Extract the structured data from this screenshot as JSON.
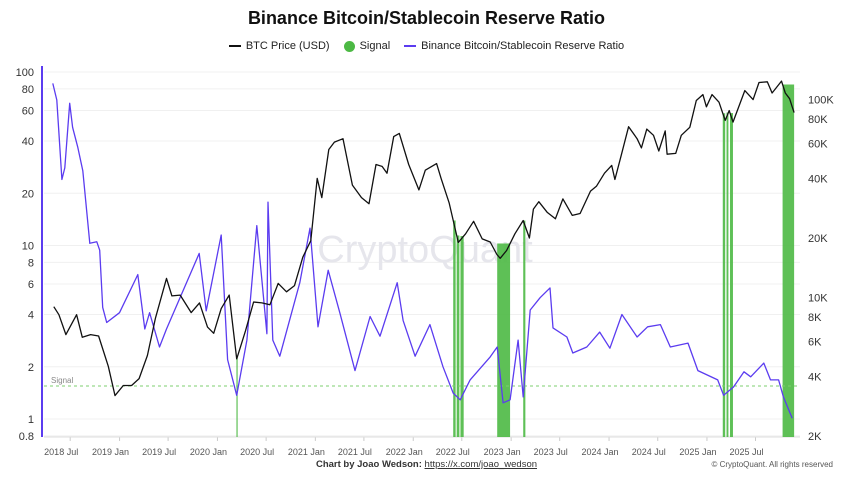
{
  "chart_data": {
    "type": "line",
    "title": "Binance Bitcoin/Stablecoin Reserve Ratio",
    "legend_position": "top",
    "grid": true,
    "x_tick_labels": [
      "2018 Jul",
      "2019 Jan",
      "2019 Jul",
      "2020 Jan",
      "2020 Jul",
      "2021 Jan",
      "2021 Jul",
      "2022 Jan",
      "2022 Jul",
      "2023 Jan",
      "2023 Jul",
      "2024 Jan",
      "2024 Jul",
      "2025 Jan",
      "2025 Jul"
    ],
    "x_ticks": [
      "2018-07-01",
      "2019-01-01",
      "2019-07-01",
      "2020-01-01",
      "2020-07-01",
      "2021-01-01",
      "2021-07-01",
      "2022-01-01",
      "2022-07-01",
      "2023-01-01",
      "2023-07-01",
      "2024-01-01",
      "2024-07-01",
      "2025-01-01",
      "2025-07-01"
    ],
    "xlim": [
      "2018-04-20",
      "2025-11-25"
    ],
    "left_axis": {
      "scale": "log",
      "ylim": [
        0.8,
        110
      ],
      "ticks": [
        0.8,
        1,
        2,
        4,
        6,
        8,
        10,
        20,
        40,
        60,
        80,
        100
      ],
      "tick_labels": [
        "0.8",
        "1",
        "2",
        "4",
        "6",
        "8",
        "10",
        "20",
        "40",
        "60",
        "80",
        "100"
      ],
      "color": "#5b3cf0"
    },
    "right_axis": {
      "scale": "log",
      "ylim": [
        2000,
        135000
      ],
      "ticks": [
        2000,
        4000,
        6000,
        8000,
        10000,
        20000,
        40000,
        60000,
        80000,
        100000
      ],
      "tick_labels": [
        "2K",
        "4K",
        "6K",
        "8K",
        "10K",
        "20K",
        "40K",
        "60K",
        "80K",
        "100K"
      ]
    },
    "signal_threshold": {
      "value": 1.55,
      "label": "Signal",
      "color": "#7ccf6f"
    },
    "series": [
      {
        "name": "BTC Price (USD)",
        "axis": "right",
        "color": "#111111",
        "points": [
          [
            "2018-05-01",
            9000
          ],
          [
            "2018-05-20",
            8200
          ],
          [
            "2018-06-15",
            6500
          ],
          [
            "2018-07-25",
            8200
          ],
          [
            "2018-08-15",
            6300
          ],
          [
            "2018-09-15",
            6500
          ],
          [
            "2018-10-15",
            6400
          ],
          [
            "2018-11-20",
            4500
          ],
          [
            "2018-12-15",
            3200
          ],
          [
            "2019-01-15",
            3600
          ],
          [
            "2019-02-15",
            3600
          ],
          [
            "2019-03-15",
            3900
          ],
          [
            "2019-04-15",
            5100
          ],
          [
            "2019-05-15",
            7900
          ],
          [
            "2019-06-25",
            12500
          ],
          [
            "2019-07-15",
            10200
          ],
          [
            "2019-08-15",
            10300
          ],
          [
            "2019-09-25",
            8400
          ],
          [
            "2019-10-26",
            9400
          ],
          [
            "2019-11-25",
            7100
          ],
          [
            "2019-12-18",
            6600
          ],
          [
            "2020-01-15",
            8800
          ],
          [
            "2020-02-14",
            10300
          ],
          [
            "2020-03-13",
            4900
          ],
          [
            "2020-04-15",
            6800
          ],
          [
            "2020-05-15",
            9500
          ],
          [
            "2020-06-15",
            9400
          ],
          [
            "2020-07-15",
            9200
          ],
          [
            "2020-08-15",
            11800
          ],
          [
            "2020-09-15",
            10700
          ],
          [
            "2020-10-15",
            11500
          ],
          [
            "2020-11-15",
            16000
          ],
          [
            "2020-12-15",
            19400
          ],
          [
            "2021-01-08",
            40000
          ],
          [
            "2021-01-25",
            32000
          ],
          [
            "2021-02-20",
            56000
          ],
          [
            "2021-03-13",
            61000
          ],
          [
            "2021-04-14",
            63500
          ],
          [
            "2021-05-19",
            37000
          ],
          [
            "2021-06-22",
            32000
          ],
          [
            "2021-07-20",
            29800
          ],
          [
            "2021-08-15",
            47000
          ],
          [
            "2021-09-07",
            46000
          ],
          [
            "2021-09-25",
            42500
          ],
          [
            "2021-10-20",
            65000
          ],
          [
            "2021-11-10",
            67500
          ],
          [
            "2021-12-15",
            47000
          ],
          [
            "2022-01-22",
            35000
          ],
          [
            "2022-02-15",
            44000
          ],
          [
            "2022-03-29",
            47500
          ],
          [
            "2022-04-15",
            40000
          ],
          [
            "2022-05-15",
            30000
          ],
          [
            "2022-06-18",
            19000
          ],
          [
            "2022-07-15",
            21000
          ],
          [
            "2022-08-14",
            24300
          ],
          [
            "2022-09-15",
            19800
          ],
          [
            "2022-10-15",
            19100
          ],
          [
            "2022-11-09",
            16500
          ],
          [
            "2022-11-21",
            15800
          ],
          [
            "2022-12-15",
            17300
          ],
          [
            "2023-01-15",
            21000
          ],
          [
            "2023-02-15",
            24500
          ],
          [
            "2023-03-10",
            20000
          ],
          [
            "2023-03-25",
            28000
          ],
          [
            "2023-04-14",
            30500
          ],
          [
            "2023-05-15",
            27000
          ],
          [
            "2023-06-15",
            25000
          ],
          [
            "2023-07-13",
            31500
          ],
          [
            "2023-08-17",
            26000
          ],
          [
            "2023-09-15",
            26600
          ],
          [
            "2023-10-24",
            34500
          ],
          [
            "2023-11-15",
            36500
          ],
          [
            "2023-12-15",
            42500
          ],
          [
            "2024-01-11",
            46500
          ],
          [
            "2024-01-23",
            39500
          ],
          [
            "2024-02-15",
            52000
          ],
          [
            "2024-03-14",
            73000
          ],
          [
            "2024-04-15",
            63500
          ],
          [
            "2024-05-01",
            57000
          ],
          [
            "2024-05-21",
            71000
          ],
          [
            "2024-06-15",
            66000
          ],
          [
            "2024-07-05",
            55000
          ],
          [
            "2024-07-29",
            69500
          ],
          [
            "2024-08-05",
            53000
          ],
          [
            "2024-09-06",
            53500
          ],
          [
            "2024-09-27",
            66000
          ],
          [
            "2024-10-29",
            72500
          ],
          [
            "2024-11-22",
            99000
          ],
          [
            "2024-12-17",
            106000
          ],
          [
            "2024-12-30",
            92000
          ],
          [
            "2025-01-20",
            106000
          ],
          [
            "2025-02-15",
            97000
          ],
          [
            "2025-03-10",
            78500
          ],
          [
            "2025-03-25",
            88000
          ],
          [
            "2025-04-08",
            77000
          ],
          [
            "2025-05-22",
            111000
          ],
          [
            "2025-06-22",
            100000
          ],
          [
            "2025-07-14",
            122000
          ],
          [
            "2025-08-14",
            123000
          ],
          [
            "2025-09-01",
            108000
          ],
          [
            "2025-10-06",
            124000
          ],
          [
            "2025-10-20",
            108000
          ],
          [
            "2025-11-05",
            101000
          ],
          [
            "2025-11-15",
            92000
          ],
          [
            "2025-11-22",
            86000
          ]
        ]
      },
      {
        "name": "Binance Bitcoin/Stablecoin Reserve Ratio",
        "axis": "left",
        "color": "#5b3cf0",
        "points": [
          [
            "2018-04-27",
            86
          ],
          [
            "2018-05-12",
            69
          ],
          [
            "2018-05-31",
            24
          ],
          [
            "2018-06-11",
            28
          ],
          [
            "2018-06-29",
            66
          ],
          [
            "2018-07-10",
            48
          ],
          [
            "2018-07-29",
            37
          ],
          [
            "2018-08-17",
            27
          ],
          [
            "2018-09-12",
            10.3
          ],
          [
            "2018-10-08",
            10.5
          ],
          [
            "2018-10-19",
            9.4
          ],
          [
            "2018-10-30",
            4.4
          ],
          [
            "2018-11-14",
            3.6
          ],
          [
            "2019-01-01",
            4.1
          ],
          [
            "2019-03-10",
            6.8
          ],
          [
            "2019-04-05",
            3.3
          ],
          [
            "2019-04-23",
            4.1
          ],
          [
            "2019-05-30",
            2.6
          ],
          [
            "2019-06-25",
            3.3
          ],
          [
            "2019-10-25",
            9.0
          ],
          [
            "2019-11-20",
            4.2
          ],
          [
            "2020-01-15",
            11.5
          ],
          [
            "2020-02-08",
            2.2
          ],
          [
            "2020-03-13",
            1.37
          ],
          [
            "2020-04-20",
            2.85
          ],
          [
            "2020-05-27",
            13
          ],
          [
            "2020-07-04",
            3.1
          ],
          [
            "2020-07-08",
            17.8
          ],
          [
            "2020-07-26",
            2.85
          ],
          [
            "2020-08-21",
            2.3
          ],
          [
            "2020-11-04",
            6.1
          ],
          [
            "2020-12-12",
            12.6
          ],
          [
            "2021-01-11",
            3.4
          ],
          [
            "2021-02-18",
            7.2
          ],
          [
            "2021-04-02",
            4.1
          ],
          [
            "2021-05-29",
            1.9
          ],
          [
            "2021-07-24",
            3.9
          ],
          [
            "2021-08-30",
            3.0
          ],
          [
            "2021-11-02",
            6.1
          ],
          [
            "2021-11-24",
            3.7
          ],
          [
            "2022-01-08",
            2.3
          ],
          [
            "2022-03-04",
            3.5
          ],
          [
            "2022-04-22",
            2.0
          ],
          [
            "2022-05-30",
            1.41
          ],
          [
            "2022-06-25",
            1.29
          ],
          [
            "2022-08-01",
            1.68
          ],
          [
            "2022-10-15",
            2.28
          ],
          [
            "2022-11-10",
            2.6
          ],
          [
            "2022-12-02",
            1.24
          ],
          [
            "2022-12-28",
            1.29
          ],
          [
            "2023-01-27",
            2.85
          ],
          [
            "2023-02-15",
            1.34
          ],
          [
            "2023-03-13",
            4.25
          ],
          [
            "2023-04-19",
            5.0
          ],
          [
            "2023-05-26",
            5.7
          ],
          [
            "2023-06-06",
            3.35
          ],
          [
            "2023-07-28",
            2.97
          ],
          [
            "2023-08-19",
            2.4
          ],
          [
            "2023-10-10",
            2.6
          ],
          [
            "2023-11-27",
            3.17
          ],
          [
            "2024-01-04",
            2.56
          ],
          [
            "2024-02-18",
            4.0
          ],
          [
            "2024-04-15",
            2.97
          ],
          [
            "2024-05-24",
            3.4
          ],
          [
            "2024-07-11",
            3.5
          ],
          [
            "2024-08-17",
            2.6
          ],
          [
            "2024-10-22",
            2.74
          ],
          [
            "2024-11-28",
            1.9
          ],
          [
            "2025-02-10",
            1.68
          ],
          [
            "2025-03-04",
            1.37
          ],
          [
            "2025-04-10",
            1.53
          ],
          [
            "2025-05-19",
            1.87
          ],
          [
            "2025-06-13",
            1.75
          ],
          [
            "2025-08-01",
            2.1
          ],
          [
            "2025-08-26",
            1.68
          ],
          [
            "2025-09-25",
            1.68
          ],
          [
            "2025-10-13",
            1.34
          ],
          [
            "2025-11-15",
            1.01
          ]
        ]
      },
      {
        "name": "Signal",
        "color": "#4cb944",
        "ranges": [
          [
            "2020-03-12",
            "2020-03-14"
          ],
          [
            "2022-05-30",
            "2022-06-08"
          ],
          [
            "2022-06-12",
            "2022-06-22"
          ],
          [
            "2022-06-26",
            "2022-07-08"
          ],
          [
            "2022-11-10",
            "2022-12-28"
          ],
          [
            "2023-02-15",
            "2023-02-23"
          ],
          [
            "2025-03-01",
            "2025-03-10"
          ],
          [
            "2025-03-15",
            "2025-03-22"
          ],
          [
            "2025-03-28",
            "2025-04-08"
          ],
          [
            "2025-10-10",
            "2025-11-22"
          ]
        ]
      }
    ]
  },
  "watermark": "CryptoQuant",
  "footer": {
    "credit_label": "Chart by Joao Wedson:",
    "link_text": "https://x.com/joao_wedson",
    "copyright": "© CryptoQuant. All rights reserved"
  }
}
